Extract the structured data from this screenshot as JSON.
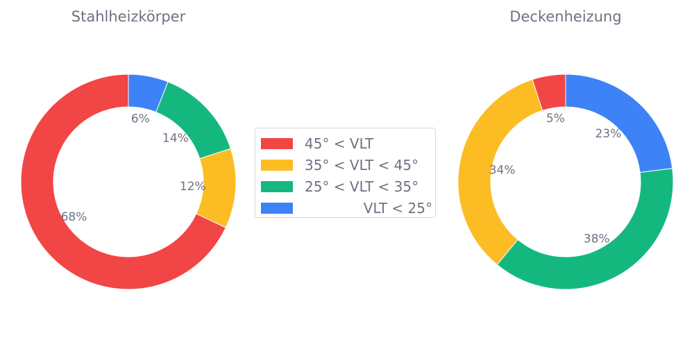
{
  "chart_data": [
    {
      "type": "pie",
      "title": "Stahlheizkörper",
      "donut": true,
      "categories": [
        "VLT < 25°",
        "25° < VLT < 35°",
        "35° < VLT < 45°",
        "45° < VLT"
      ],
      "values": [
        6,
        14,
        12,
        68
      ],
      "labels": [
        "6%",
        "14%",
        "12%",
        "68%"
      ]
    },
    {
      "type": "pie",
      "title": "Deckenheizung",
      "donut": true,
      "categories": [
        "VLT < 25°",
        "25° < VLT < 35°",
        "35° < VLT < 45°",
        "45° < VLT"
      ],
      "values": [
        23,
        38,
        34,
        5
      ],
      "labels": [
        "23%",
        "38%",
        "34%",
        "5%"
      ]
    }
  ],
  "legend": {
    "placement": "center",
    "items": [
      {
        "label": "45° < VLT",
        "color": "#f24545"
      },
      {
        "label": "35° < VLT < 45°",
        "color": "#fbbd23"
      },
      {
        "label": "25° < VLT < 35°",
        "color": "#14b87e"
      },
      {
        "label": "VLT < 25°",
        "color": "#3d82f6"
      }
    ]
  },
  "colors": {
    "VLT < 25°": "#3d82f6",
    "25° < VLT < 35°": "#14b87e",
    "35° < VLT < 45°": "#fbbd23",
    "45° < VLT": "#f24545",
    "text": "#6b7280"
  }
}
